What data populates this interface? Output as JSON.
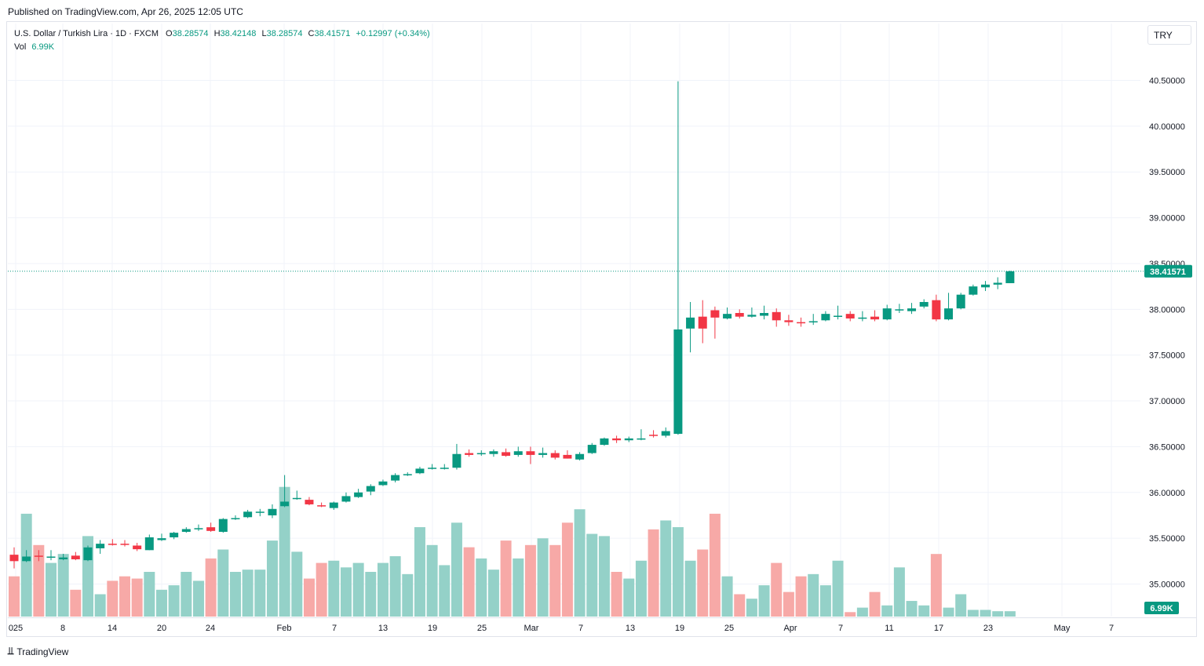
{
  "header": {
    "published": "Published on TradingView.com, Apr 26, 2025 12:05 UTC"
  },
  "legend": {
    "symbol": "U.S. Dollar / Turkish Lira · 1D · FXCM",
    "open_label": "O",
    "open": "38.28574",
    "high_label": "H",
    "high": "38.42148",
    "low_label": "L",
    "low": "38.28574",
    "close_label": "C",
    "close": "38.41571",
    "change": "+0.12997 (+0.34%)",
    "vol_label": "Vol",
    "vol": "6.99K"
  },
  "currency_button": "TRY",
  "footer": {
    "brand": "TradingView",
    "logo": "tradingview-logo-icon"
  },
  "colors": {
    "up": "#089981",
    "down": "#f23645",
    "vol_up": "#94d1c8",
    "vol_down": "#f7a9a7",
    "grid": "#f0f3fa"
  },
  "chart_data": {
    "type": "candlestick",
    "title": "U.S. Dollar / Turkish Lira · 1D · FXCM",
    "y_ticks": [
      "35.00000",
      "35.50000",
      "36.00000",
      "36.50000",
      "37.00000",
      "37.50000",
      "38.00000",
      "38.50000",
      "39.00000",
      "39.50000",
      "40.00000",
      "40.50000"
    ],
    "x_ticks": [
      "025",
      "8",
      "14",
      "20",
      "24",
      "Feb",
      "7",
      "13",
      "19",
      "25",
      "Mar",
      "7",
      "13",
      "19",
      "25",
      "Apr",
      "7",
      "11",
      "17",
      "23",
      "May",
      "7"
    ],
    "last_price_label": "38.41571",
    "last_volume_label": "6.99K",
    "ylim": [
      34.7,
      40.7
    ],
    "grid": true,
    "candles": [
      {
        "o": 35.32,
        "h": 35.4,
        "l": 35.17,
        "c": 35.25,
        "v": 0.9
      },
      {
        "o": 35.25,
        "h": 35.37,
        "l": 35.24,
        "c": 35.3,
        "v": 2.3
      },
      {
        "o": 35.31,
        "h": 35.37,
        "l": 35.25,
        "c": 35.3,
        "v": 1.6
      },
      {
        "o": 35.29,
        "h": 35.37,
        "l": 35.26,
        "c": 35.3,
        "v": 1.2
      },
      {
        "o": 35.27,
        "h": 35.33,
        "l": 35.26,
        "c": 35.29,
        "v": 1.4
      },
      {
        "o": 35.31,
        "h": 35.35,
        "l": 35.26,
        "c": 35.27,
        "v": 0.6
      },
      {
        "o": 35.26,
        "h": 35.42,
        "l": 35.25,
        "c": 35.4,
        "v": 1.8
      },
      {
        "o": 35.39,
        "h": 35.48,
        "l": 35.33,
        "c": 35.44,
        "v": 0.5
      },
      {
        "o": 35.44,
        "h": 35.49,
        "l": 35.42,
        "c": 35.43,
        "v": 0.8
      },
      {
        "o": 35.44,
        "h": 35.48,
        "l": 35.41,
        "c": 35.43,
        "v": 0.9
      },
      {
        "o": 35.42,
        "h": 35.45,
        "l": 35.36,
        "c": 35.38,
        "v": 0.85
      },
      {
        "o": 35.37,
        "h": 35.54,
        "l": 35.37,
        "c": 35.51,
        "v": 1.0
      },
      {
        "o": 35.48,
        "h": 35.55,
        "l": 35.47,
        "c": 35.5,
        "v": 0.6
      },
      {
        "o": 35.51,
        "h": 35.57,
        "l": 35.49,
        "c": 35.56,
        "v": 0.7
      },
      {
        "o": 35.57,
        "h": 35.62,
        "l": 35.56,
        "c": 35.6,
        "v": 1.0
      },
      {
        "o": 35.61,
        "h": 35.65,
        "l": 35.58,
        "c": 35.61,
        "v": 0.8
      },
      {
        "o": 35.62,
        "h": 35.67,
        "l": 35.57,
        "c": 35.58,
        "v": 1.3
      },
      {
        "o": 35.57,
        "h": 35.72,
        "l": 35.56,
        "c": 35.71,
        "v": 1.5
      },
      {
        "o": 35.72,
        "h": 35.75,
        "l": 35.7,
        "c": 35.72,
        "v": 1.0
      },
      {
        "o": 35.73,
        "h": 35.81,
        "l": 35.72,
        "c": 35.79,
        "v": 1.05
      },
      {
        "o": 35.79,
        "h": 35.82,
        "l": 35.74,
        "c": 35.79,
        "v": 1.05
      },
      {
        "o": 35.75,
        "h": 35.87,
        "l": 35.72,
        "c": 35.82,
        "v": 1.7
      },
      {
        "o": 35.85,
        "h": 36.19,
        "l": 35.84,
        "c": 35.9,
        "v": 2.9
      },
      {
        "o": 35.94,
        "h": 36.02,
        "l": 35.92,
        "c": 35.94,
        "v": 1.45
      },
      {
        "o": 35.92,
        "h": 35.95,
        "l": 35.86,
        "c": 35.87,
        "v": 0.85
      },
      {
        "o": 35.86,
        "h": 35.89,
        "l": 35.84,
        "c": 35.85,
        "v": 1.2
      },
      {
        "o": 35.83,
        "h": 35.9,
        "l": 35.81,
        "c": 35.89,
        "v": 1.25
      },
      {
        "o": 35.9,
        "h": 36.0,
        "l": 35.89,
        "c": 35.96,
        "v": 1.1
      },
      {
        "o": 35.95,
        "h": 36.04,
        "l": 35.94,
        "c": 36.0,
        "v": 1.2
      },
      {
        "o": 36.01,
        "h": 36.09,
        "l": 35.97,
        "c": 36.07,
        "v": 1.0
      },
      {
        "o": 36.08,
        "h": 36.14,
        "l": 36.07,
        "c": 36.12,
        "v": 1.2
      },
      {
        "o": 36.13,
        "h": 36.21,
        "l": 36.11,
        "c": 36.19,
        "v": 1.35
      },
      {
        "o": 36.2,
        "h": 36.22,
        "l": 36.18,
        "c": 36.2,
        "v": 0.95
      },
      {
        "o": 36.21,
        "h": 36.28,
        "l": 36.2,
        "c": 36.26,
        "v": 2.0
      },
      {
        "o": 36.27,
        "h": 36.31,
        "l": 36.25,
        "c": 36.27,
        "v": 1.6
      },
      {
        "o": 36.27,
        "h": 36.31,
        "l": 36.25,
        "c": 36.27,
        "v": 1.15
      },
      {
        "o": 36.27,
        "h": 36.53,
        "l": 36.25,
        "c": 36.42,
        "v": 2.1
      },
      {
        "o": 36.43,
        "h": 36.47,
        "l": 36.39,
        "c": 36.41,
        "v": 1.55
      },
      {
        "o": 36.42,
        "h": 36.46,
        "l": 36.4,
        "c": 36.43,
        "v": 1.3
      },
      {
        "o": 36.42,
        "h": 36.47,
        "l": 36.39,
        "c": 36.45,
        "v": 1.05
      },
      {
        "o": 36.44,
        "h": 36.48,
        "l": 36.39,
        "c": 36.4,
        "v": 1.7
      },
      {
        "o": 36.41,
        "h": 36.5,
        "l": 36.39,
        "c": 36.45,
        "v": 1.3
      },
      {
        "o": 36.45,
        "h": 36.5,
        "l": 36.31,
        "c": 36.41,
        "v": 1.6
      },
      {
        "o": 36.41,
        "h": 36.49,
        "l": 36.38,
        "c": 36.43,
        "v": 1.75
      },
      {
        "o": 36.43,
        "h": 36.46,
        "l": 36.36,
        "c": 36.38,
        "v": 1.6
      },
      {
        "o": 36.41,
        "h": 36.46,
        "l": 36.37,
        "c": 36.37,
        "v": 2.1
      },
      {
        "o": 36.36,
        "h": 36.44,
        "l": 36.35,
        "c": 36.42,
        "v": 2.4
      },
      {
        "o": 36.43,
        "h": 36.54,
        "l": 36.42,
        "c": 36.52,
        "v": 1.85
      },
      {
        "o": 36.52,
        "h": 36.6,
        "l": 36.51,
        "c": 36.59,
        "v": 1.8
      },
      {
        "o": 36.59,
        "h": 36.62,
        "l": 36.54,
        "c": 36.57,
        "v": 1.0
      },
      {
        "o": 36.57,
        "h": 36.61,
        "l": 36.55,
        "c": 36.59,
        "v": 0.85
      },
      {
        "o": 36.59,
        "h": 36.69,
        "l": 36.57,
        "c": 36.59,
        "v": 1.25
      },
      {
        "o": 36.63,
        "h": 36.68,
        "l": 36.6,
        "c": 36.62,
        "v": 1.95
      },
      {
        "o": 36.62,
        "h": 36.71,
        "l": 36.6,
        "c": 36.67,
        "v": 2.15
      },
      {
        "o": 36.64,
        "h": 40.49,
        "l": 36.63,
        "c": 37.78,
        "v": 2.0
      },
      {
        "o": 37.79,
        "h": 38.08,
        "l": 37.53,
        "c": 37.91,
        "v": 1.25
      },
      {
        "o": 37.92,
        "h": 38.1,
        "l": 37.63,
        "c": 37.79,
        "v": 1.5
      },
      {
        "o": 37.99,
        "h": 38.03,
        "l": 37.68,
        "c": 37.91,
        "v": 2.3
      },
      {
        "o": 37.9,
        "h": 38.02,
        "l": 37.89,
        "c": 37.95,
        "v": 0.9
      },
      {
        "o": 37.96,
        "h": 38.0,
        "l": 37.9,
        "c": 37.92,
        "v": 0.5
      },
      {
        "o": 37.92,
        "h": 38.02,
        "l": 37.91,
        "c": 37.94,
        "v": 0.4
      },
      {
        "o": 37.93,
        "h": 38.04,
        "l": 37.89,
        "c": 37.96,
        "v": 0.7
      },
      {
        "o": 37.97,
        "h": 38.01,
        "l": 37.81,
        "c": 37.88,
        "v": 1.2
      },
      {
        "o": 37.88,
        "h": 37.94,
        "l": 37.82,
        "c": 37.86,
        "v": 0.55
      },
      {
        "o": 37.86,
        "h": 37.91,
        "l": 37.81,
        "c": 37.85,
        "v": 0.9
      },
      {
        "o": 37.86,
        "h": 37.95,
        "l": 37.83,
        "c": 37.87,
        "v": 0.95
      },
      {
        "o": 37.88,
        "h": 37.98,
        "l": 37.87,
        "c": 37.95,
        "v": 0.7
      },
      {
        "o": 37.93,
        "h": 38.04,
        "l": 37.89,
        "c": 37.93,
        "v": 1.25
      },
      {
        "o": 37.95,
        "h": 37.98,
        "l": 37.87,
        "c": 37.9,
        "v": 0.1
      },
      {
        "o": 37.9,
        "h": 37.98,
        "l": 37.87,
        "c": 37.91,
        "v": 0.2
      },
      {
        "o": 37.92,
        "h": 37.99,
        "l": 37.87,
        "c": 37.89,
        "v": 0.55
      },
      {
        "o": 37.89,
        "h": 38.05,
        "l": 37.88,
        "c": 38.01,
        "v": 0.25
      },
      {
        "o": 38.0,
        "h": 38.06,
        "l": 37.96,
        "c": 38.0,
        "v": 1.1
      },
      {
        "o": 37.98,
        "h": 38.07,
        "l": 37.95,
        "c": 38.01,
        "v": 0.35
      },
      {
        "o": 38.03,
        "h": 38.11,
        "l": 38.01,
        "c": 38.08,
        "v": 0.25
      },
      {
        "o": 38.1,
        "h": 38.16,
        "l": 37.87,
        "c": 37.89,
        "v": 1.4
      },
      {
        "o": 37.89,
        "h": 38.18,
        "l": 37.88,
        "c": 38.01,
        "v": 0.2
      },
      {
        "o": 38.01,
        "h": 38.18,
        "l": 38.0,
        "c": 38.16,
        "v": 0.5
      },
      {
        "o": 38.16,
        "h": 38.27,
        "l": 38.15,
        "c": 38.25,
        "v": 0.15
      },
      {
        "o": 38.24,
        "h": 38.31,
        "l": 38.2,
        "c": 38.27,
        "v": 0.15
      },
      {
        "o": 38.27,
        "h": 38.35,
        "l": 38.22,
        "c": 38.29,
        "v": 0.12
      },
      {
        "o": 38.28574,
        "h": 38.42148,
        "l": 38.28574,
        "c": 38.41571,
        "v": 0.12
      }
    ]
  }
}
